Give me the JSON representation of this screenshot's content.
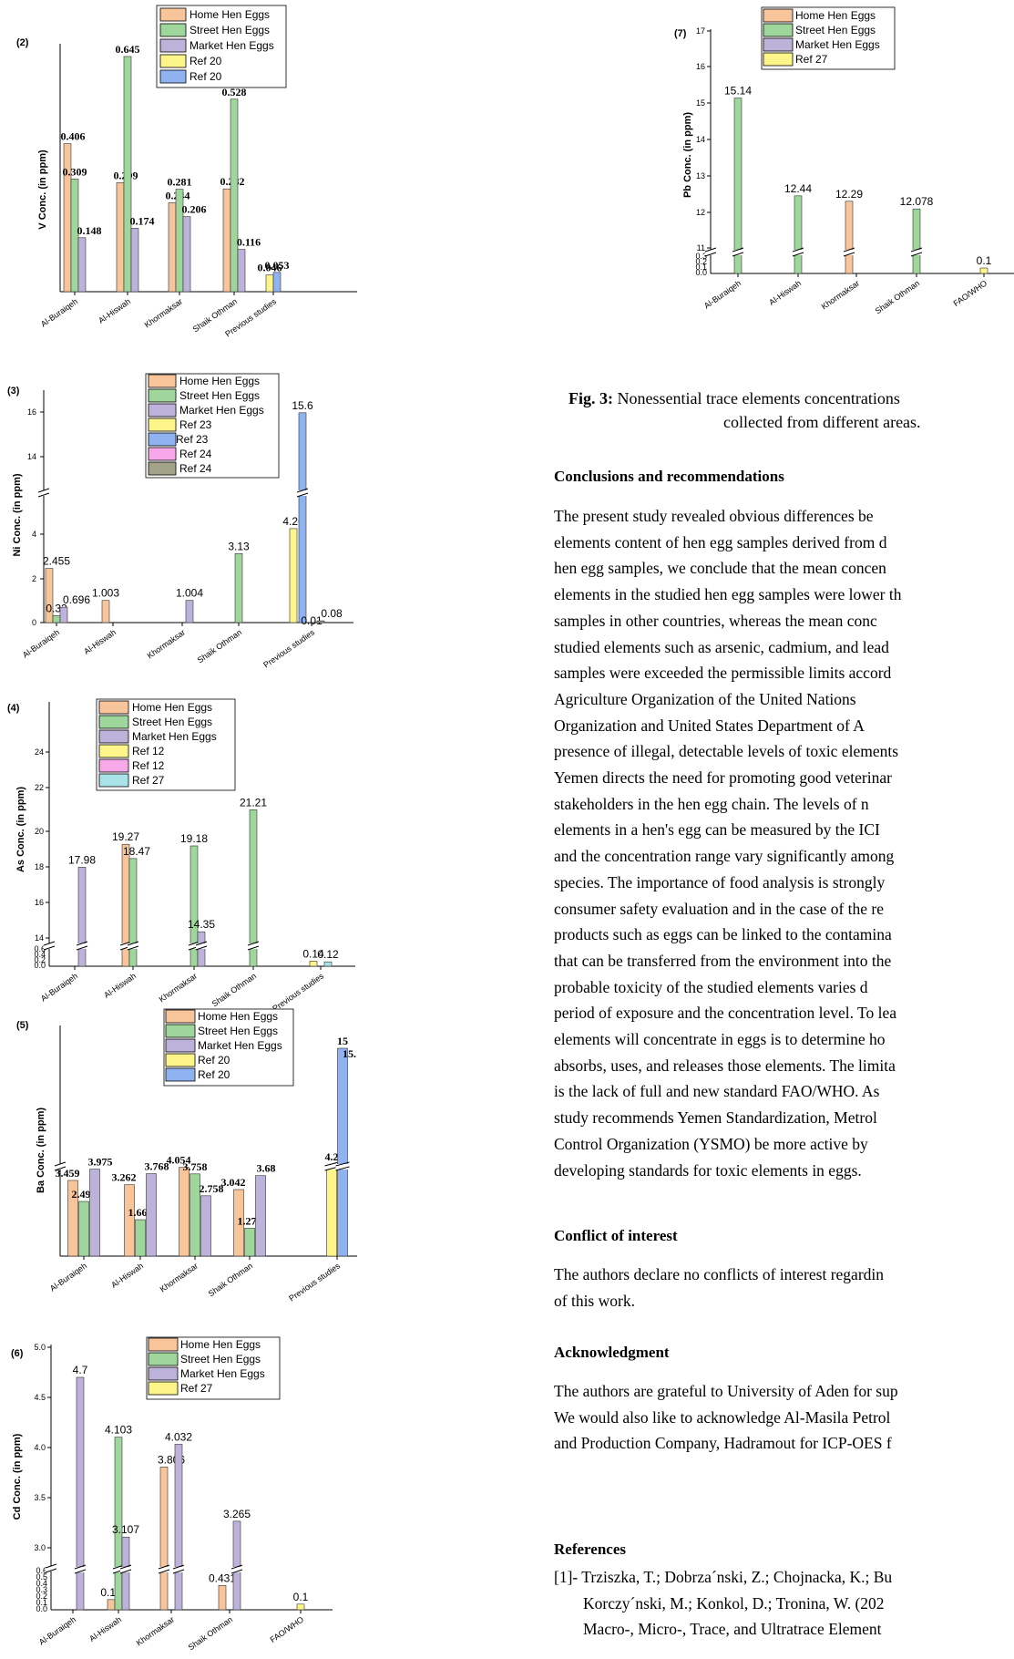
{
  "caption": {
    "label": "Fig. 3:",
    "line1": "Nonessential trace elements concentrations",
    "line2": "collected from different areas."
  },
  "sections": {
    "conclusions": {
      "heading": "Conclusions and recommendations",
      "lines": [
        "The present study revealed obvious differences be",
        "elements content of hen egg samples derived from d",
        "hen egg samples, we conclude that the mean concen",
        "elements in the studied hen egg samples were lower th",
        "samples in other countries, whereas the mean conc",
        "studied elements such as arsenic, cadmium, and lead",
        "samples were exceeded the permissible limits accord",
        "Agriculture Organization of the United Nations",
        "Organization and United States Department of A",
        "presence of illegal, detectable levels of toxic elements",
        "Yemen directs the need for promoting good veterinar",
        "stakeholders in the hen egg chain. The levels of n",
        "elements in a hen's egg can be measured by the ICI",
        "and the concentration range vary significantly among",
        "species. The importance of food analysis is strongly",
        "consumer safety evaluation and in the case of the re",
        "products such as eggs can be linked to the contamina",
        "that can be transferred from the environment into the",
        "probable toxicity of the studied elements varies d",
        "period of exposure and the concentration level. To lea",
        "elements will concentrate in eggs is to determine ho",
        "absorbs, uses, and releases those elements. The limita",
        "is the lack of full and new standard FAO/WHO. As",
        "study recommends Yemen Standardization, Metrol",
        "Control Organization (YSMO) be more active by",
        "developing standards for toxic elements in eggs."
      ]
    },
    "conflict": {
      "heading": "Conflict of interest",
      "lines": [
        "The authors declare no conflicts of interest regardin",
        "of this work."
      ]
    },
    "acknowledgment": {
      "heading": "Acknowledgment",
      "lines": [
        "The authors are grateful to University of Aden for sup",
        "We would also like to acknowledge Al-Masila Petrol",
        "and Production Company, Hadramout for ICP-OES f"
      ]
    },
    "references": {
      "heading": "References",
      "lines": [
        "[1]- Trziszka, T.; Dobrza´nski, Z.; Chojnacka, K.; Bu",
        "Korczy´nski, M.; Konkol, D.; Tronina, W. (202",
        "Macro-, Micro-, Trace, and Ultratrace Element"
      ]
    }
  },
  "chart_data": [
    {
      "panel": "(2)",
      "type": "bar",
      "ylabel": "V Conc. (in ppm)",
      "categories": [
        "Al-Buraiqeh",
        "Al-Hiswah",
        "Khormaksar",
        "Shaik Othman",
        "Previous studies"
      ],
      "series": [
        {
          "name": "Home Hen Eggs",
          "color": "#f8c49a",
          "values": [
            0.406,
            0.299,
            0.244,
            0.282,
            null
          ]
        },
        {
          "name": "Street Hen Eggs",
          "color": "#9ed69b",
          "values": [
            0.309,
            0.645,
            0.281,
            0.528,
            null
          ]
        },
        {
          "name": "Market Hen Eggs",
          "color": "#bdb2d9",
          "values": [
            0.148,
            0.174,
            0.206,
            0.116,
            null
          ]
        },
        {
          "name": "Ref 20",
          "color": "#fdf58a",
          "values": [
            null,
            null,
            null,
            null,
            0.046
          ]
        },
        {
          "name": "Ref 20",
          "color": "#8fb3f0",
          "values": [
            null,
            null,
            null,
            null,
            0.053
          ]
        }
      ],
      "ylim": [
        0,
        0.7
      ],
      "data_labels": [
        "0.406",
        "0.309",
        "0.148",
        "0.299",
        "0.645",
        "0.174",
        "0.244",
        "0.281",
        "0.206",
        "0.282",
        "0.528",
        "0.116",
        "0.046",
        "0.053"
      ]
    },
    {
      "panel": "(3)",
      "type": "bar",
      "ylabel": "Ni Conc. (in ppm)",
      "categories": [
        "Al-Buraiqeh",
        "Al-Hiswah",
        "Khormaksar",
        "Shaik Othman",
        "Previous studies"
      ],
      "series": [
        {
          "name": "Home Hen Eggs",
          "color": "#f8c49a",
          "values": [
            2.455,
            1.003,
            null,
            null,
            null
          ]
        },
        {
          "name": "Street Hen Eggs",
          "color": "#9ed69b",
          "values": [
            0.32,
            null,
            null,
            3.13,
            null
          ]
        },
        {
          "name": "Market Hen Eggs",
          "color": "#bdb2d9",
          "values": [
            0.696,
            null,
            1.004,
            null,
            null
          ]
        },
        {
          "name": "Ref 23",
          "color": "#fdf58a",
          "values": [
            null,
            null,
            null,
            null,
            4.26
          ]
        },
        {
          "name": "Ref 23",
          "color": "#8fb3f0",
          "values": [
            null,
            null,
            null,
            null,
            15.6
          ]
        },
        {
          "name": "Ref 24",
          "color": "#f7a8e8",
          "values": [
            null,
            null,
            null,
            null,
            0.01
          ]
        },
        {
          "name": "Ref 24",
          "color": "#a3a38a",
          "values": [
            null,
            null,
            null,
            null,
            0.08
          ]
        }
      ],
      "yticks": [
        "0",
        "2",
        "4",
        "14",
        "16"
      ],
      "axis_break": true
    },
    {
      "panel": "(4)",
      "type": "bar",
      "ylabel": "As Conc. (in ppm)",
      "categories": [
        "Al-Buraiqeh",
        "Al-Hiswah",
        "Khormaksar",
        "Shaik Othman",
        "Previous studies"
      ],
      "series": [
        {
          "name": "Home Hen Eggs",
          "color": "#f8c49a",
          "values": [
            null,
            19.27,
            null,
            null,
            null
          ]
        },
        {
          "name": "Street Hen Eggs",
          "color": "#9ed69b",
          "values": [
            null,
            18.47,
            19.18,
            21.21,
            null
          ]
        },
        {
          "name": "Market Hen Eggs",
          "color": "#bdb2d9",
          "values": [
            17.98,
            null,
            14.35,
            null,
            null
          ]
        },
        {
          "name": "Ref 12",
          "color": "#fdf58a",
          "values": [
            null,
            null,
            null,
            null,
            0.14
          ]
        },
        {
          "name": "Ref 12",
          "color": "#f7a8e8",
          "values": [
            null,
            null,
            null,
            null,
            null
          ]
        },
        {
          "name": "Ref 27",
          "color": "#a8e3e8",
          "values": [
            null,
            null,
            null,
            null,
            0.12
          ]
        }
      ],
      "yticks": [
        "0.0",
        "0.2",
        "0.4",
        "0.6",
        "14",
        "16",
        "18",
        "20",
        "22",
        "24"
      ],
      "axis_break": true
    },
    {
      "panel": "(5)",
      "type": "bar",
      "ylabel": "Ba Conc. (in ppm)",
      "categories": [
        "Al-Buraiqeh",
        "Al-Hiswah",
        "Khormaksar",
        "Shaik Othman",
        "Previous studies"
      ],
      "series": [
        {
          "name": "Home Hen Eggs",
          "color": "#f8c49a",
          "values": [
            3.459,
            3.262,
            4.054,
            3.042,
            null
          ]
        },
        {
          "name": "Street Hen Eggs",
          "color": "#9ed69b",
          "values": [
            2.498,
            1.666,
            3.758,
            1.272,
            null
          ]
        },
        {
          "name": "Market Hen Eggs",
          "color": "#bdb2d9",
          "values": [
            3.975,
            3.768,
            2.758,
            3.68,
            null
          ]
        },
        {
          "name": "Ref 20",
          "color": "#fdf58a",
          "values": [
            null,
            null,
            null,
            null,
            4.2
          ]
        },
        {
          "name": "Ref 20",
          "color": "#8fb3f0",
          "values": [
            null,
            null,
            null,
            null,
            15
          ]
        }
      ],
      "top_label": "15.",
      "axis_break": true
    },
    {
      "panel": "(6)",
      "type": "bar",
      "ylabel": "Cd Conc. (in ppm)",
      "categories": [
        "Al-Buraiqeh",
        "Al-Hiswah",
        "Khormaksar",
        "Shaik Othman",
        "FAO/WHO"
      ],
      "series": [
        {
          "name": "Home Hen Eggs",
          "color": "#f8c49a",
          "values": [
            null,
            0.18,
            3.806,
            0.431,
            null
          ]
        },
        {
          "name": "Street Hen Eggs",
          "color": "#9ed69b",
          "values": [
            null,
            4.103,
            null,
            null,
            null
          ]
        },
        {
          "name": "Market Hen Eggs",
          "color": "#bdb2d9",
          "values": [
            4.7,
            3.107,
            4.032,
            3.265,
            null
          ]
        },
        {
          "name": "Ref 27",
          "color": "#fdf58a",
          "values": [
            null,
            null,
            null,
            null,
            0.1
          ]
        }
      ],
      "yticks": [
        "0.0",
        "0.1",
        "0.2",
        "0.3",
        "0.4",
        "0.5",
        "0.6",
        "3.0",
        "3.5",
        "4.0",
        "4.5",
        "5.0"
      ],
      "axis_break": true
    },
    {
      "panel": "(7)",
      "type": "bar",
      "ylabel": "Pb Conc. (in ppm)",
      "categories": [
        "Al-Buraiqeh",
        "Al-Hiswah",
        "Khormaksar",
        "Shaik Othman",
        "FAO/WHO"
      ],
      "series": [
        {
          "name": "Home Hen Eggs",
          "color": "#f8c49a",
          "values": [
            null,
            null,
            12.29,
            null,
            null
          ]
        },
        {
          "name": "Street Hen Eggs",
          "color": "#9ed69b",
          "values": [
            15.14,
            12.44,
            null,
            12.078,
            null
          ]
        },
        {
          "name": "Market Hen Eggs",
          "color": "#bdb2d9",
          "values": [
            null,
            null,
            null,
            null,
            null
          ]
        },
        {
          "name": "Ref 27",
          "color": "#fdf58a",
          "values": [
            null,
            null,
            null,
            null,
            0.1
          ]
        }
      ],
      "yticks": [
        "0.0",
        "0.1",
        "0.2",
        "0.3",
        "11",
        "12",
        "13",
        "14",
        "15",
        "16",
        "17"
      ],
      "axis_break": true
    }
  ]
}
